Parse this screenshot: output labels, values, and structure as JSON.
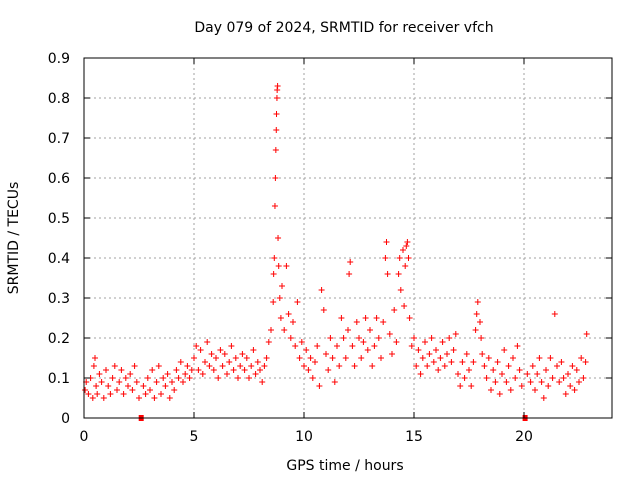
{
  "chart_data": {
    "type": "scatter",
    "title": "Day 079 of 2024, SRMTID for receiver vfch",
    "xlabel": "GPS time / hours",
    "ylabel": "SRMTID / TECUs",
    "xlim": [
      0,
      24
    ],
    "ylim": [
      0,
      0.9
    ],
    "x_ticks": [
      0,
      5,
      10,
      15,
      20
    ],
    "x_tick_labels": [
      "0",
      "5",
      "10",
      "15",
      "20"
    ],
    "y_ticks": [
      0,
      0.1,
      0.2,
      0.3,
      0.4,
      0.5,
      0.6,
      0.7,
      0.8,
      0.9
    ],
    "y_tick_labels": [
      "0",
      "0.1",
      "0.2",
      "0.3",
      "0.4",
      "0.5",
      "0.6",
      "0.7",
      "0.8",
      "0.9"
    ],
    "grid": true,
    "marker": "+",
    "marker_color": "#ff0000",
    "data_gaps_hours": [
      2.6,
      20.05
    ],
    "series": [
      {
        "name": "SRMTID",
        "points": [
          [
            0.05,
            0.07
          ],
          [
            0.1,
            0.09
          ],
          [
            0.2,
            0.06
          ],
          [
            0.3,
            0.1
          ],
          [
            0.4,
            0.05
          ],
          [
            0.45,
            0.13
          ],
          [
            0.5,
            0.15
          ],
          [
            0.55,
            0.08
          ],
          [
            0.6,
            0.06
          ],
          [
            0.7,
            0.11
          ],
          [
            0.8,
            0.09
          ],
          [
            0.9,
            0.05
          ],
          [
            1.0,
            0.12
          ],
          [
            1.1,
            0.08
          ],
          [
            1.2,
            0.06
          ],
          [
            1.3,
            0.1
          ],
          [
            1.4,
            0.13
          ],
          [
            1.5,
            0.07
          ],
          [
            1.6,
            0.09
          ],
          [
            1.7,
            0.12
          ],
          [
            1.8,
            0.06
          ],
          [
            1.9,
            0.1
          ],
          [
            2.0,
            0.08
          ],
          [
            2.1,
            0.11
          ],
          [
            2.2,
            0.07
          ],
          [
            2.3,
            0.13
          ],
          [
            2.4,
            0.09
          ],
          [
            2.5,
            0.05
          ],
          [
            2.7,
            0.08
          ],
          [
            2.8,
            0.06
          ],
          [
            2.9,
            0.1
          ],
          [
            3.0,
            0.07
          ],
          [
            3.1,
            0.12
          ],
          [
            3.2,
            0.05
          ],
          [
            3.3,
            0.09
          ],
          [
            3.4,
            0.13
          ],
          [
            3.5,
            0.06
          ],
          [
            3.6,
            0.1
          ],
          [
            3.7,
            0.08
          ],
          [
            3.8,
            0.11
          ],
          [
            3.9,
            0.05
          ],
          [
            4.0,
            0.09
          ],
          [
            4.1,
            0.07
          ],
          [
            4.2,
            0.12
          ],
          [
            4.3,
            0.1
          ],
          [
            4.4,
            0.14
          ],
          [
            4.5,
            0.09
          ],
          [
            4.6,
            0.11
          ],
          [
            4.7,
            0.13
          ],
          [
            4.8,
            0.1
          ],
          [
            4.9,
            0.12
          ],
          [
            5.0,
            0.15
          ],
          [
            5.1,
            0.18
          ],
          [
            5.2,
            0.12
          ],
          [
            5.3,
            0.17
          ],
          [
            5.4,
            0.11
          ],
          [
            5.5,
            0.14
          ],
          [
            5.6,
            0.19
          ],
          [
            5.7,
            0.13
          ],
          [
            5.8,
            0.16
          ],
          [
            5.9,
            0.12
          ],
          [
            6.0,
            0.15
          ],
          [
            6.1,
            0.1
          ],
          [
            6.2,
            0.17
          ],
          [
            6.3,
            0.13
          ],
          [
            6.4,
            0.16
          ],
          [
            6.5,
            0.11
          ],
          [
            6.6,
            0.14
          ],
          [
            6.7,
            0.18
          ],
          [
            6.8,
            0.12
          ],
          [
            6.9,
            0.15
          ],
          [
            7.0,
            0.1
          ],
          [
            7.1,
            0.13
          ],
          [
            7.2,
            0.16
          ],
          [
            7.3,
            0.12
          ],
          [
            7.4,
            0.15
          ],
          [
            7.5,
            0.1
          ],
          [
            7.6,
            0.13
          ],
          [
            7.7,
            0.17
          ],
          [
            7.8,
            0.11
          ],
          [
            7.9,
            0.14
          ],
          [
            8.0,
            0.12
          ],
          [
            8.1,
            0.09
          ],
          [
            8.2,
            0.13
          ],
          [
            8.3,
            0.15
          ],
          [
            8.4,
            0.19
          ],
          [
            8.5,
            0.22
          ],
          [
            8.6,
            0.29
          ],
          [
            8.62,
            0.36
          ],
          [
            8.65,
            0.4
          ],
          [
            8.68,
            0.53
          ],
          [
            8.7,
            0.6
          ],
          [
            8.72,
            0.67
          ],
          [
            8.74,
            0.72
          ],
          [
            8.75,
            0.76
          ],
          [
            8.77,
            0.8
          ],
          [
            8.78,
            0.82
          ],
          [
            8.8,
            0.83
          ],
          [
            8.82,
            0.45
          ],
          [
            8.85,
            0.38
          ],
          [
            8.9,
            0.3
          ],
          [
            8.95,
            0.25
          ],
          [
            9.0,
            0.33
          ],
          [
            9.1,
            0.22
          ],
          [
            9.2,
            0.38
          ],
          [
            9.3,
            0.26
          ],
          [
            9.4,
            0.2
          ],
          [
            9.5,
            0.24
          ],
          [
            9.6,
            0.18
          ],
          [
            9.7,
            0.29
          ],
          [
            9.8,
            0.15
          ],
          [
            9.9,
            0.19
          ],
          [
            10.0,
            0.13
          ],
          [
            10.1,
            0.17
          ],
          [
            10.2,
            0.12
          ],
          [
            10.3,
            0.15
          ],
          [
            10.4,
            0.1
          ],
          [
            10.5,
            0.14
          ],
          [
            10.6,
            0.18
          ],
          [
            10.7,
            0.08
          ],
          [
            10.8,
            0.32
          ],
          [
            10.9,
            0.27
          ],
          [
            11.0,
            0.16
          ],
          [
            11.1,
            0.12
          ],
          [
            11.2,
            0.2
          ],
          [
            11.3,
            0.15
          ],
          [
            11.4,
            0.09
          ],
          [
            11.5,
            0.18
          ],
          [
            11.6,
            0.13
          ],
          [
            11.7,
            0.25
          ],
          [
            11.8,
            0.2
          ],
          [
            11.9,
            0.15
          ],
          [
            12.0,
            0.22
          ],
          [
            12.05,
            0.36
          ],
          [
            12.1,
            0.39
          ],
          [
            12.2,
            0.18
          ],
          [
            12.3,
            0.13
          ],
          [
            12.4,
            0.24
          ],
          [
            12.5,
            0.2
          ],
          [
            12.6,
            0.15
          ],
          [
            12.7,
            0.19
          ],
          [
            12.8,
            0.25
          ],
          [
            12.9,
            0.17
          ],
          [
            13.0,
            0.22
          ],
          [
            13.1,
            0.13
          ],
          [
            13.2,
            0.18
          ],
          [
            13.3,
            0.25
          ],
          [
            13.4,
            0.2
          ],
          [
            13.5,
            0.15
          ],
          [
            13.6,
            0.24
          ],
          [
            13.7,
            0.4
          ],
          [
            13.75,
            0.44
          ],
          [
            13.8,
            0.36
          ],
          [
            13.9,
            0.21
          ],
          [
            14.0,
            0.16
          ],
          [
            14.1,
            0.27
          ],
          [
            14.2,
            0.19
          ],
          [
            14.3,
            0.36
          ],
          [
            14.35,
            0.4
          ],
          [
            14.4,
            0.32
          ],
          [
            14.5,
            0.42
          ],
          [
            14.55,
            0.28
          ],
          [
            14.6,
            0.38
          ],
          [
            14.65,
            0.43
          ],
          [
            14.7,
            0.44
          ],
          [
            14.75,
            0.4
          ],
          [
            14.8,
            0.25
          ],
          [
            14.9,
            0.18
          ],
          [
            15.0,
            0.2
          ],
          [
            15.1,
            0.13
          ],
          [
            15.2,
            0.17
          ],
          [
            15.3,
            0.11
          ],
          [
            15.4,
            0.15
          ],
          [
            15.5,
            0.19
          ],
          [
            15.6,
            0.13
          ],
          [
            15.7,
            0.16
          ],
          [
            15.8,
            0.2
          ],
          [
            15.9,
            0.14
          ],
          [
            16.0,
            0.17
          ],
          [
            16.1,
            0.12
          ],
          [
            16.2,
            0.15
          ],
          [
            16.3,
            0.19
          ],
          [
            16.4,
            0.13
          ],
          [
            16.5,
            0.16
          ],
          [
            16.6,
            0.2
          ],
          [
            16.7,
            0.14
          ],
          [
            16.8,
            0.17
          ],
          [
            16.9,
            0.21
          ],
          [
            17.0,
            0.11
          ],
          [
            17.1,
            0.08
          ],
          [
            17.2,
            0.14
          ],
          [
            17.3,
            0.1
          ],
          [
            17.4,
            0.16
          ],
          [
            17.5,
            0.12
          ],
          [
            17.6,
            0.08
          ],
          [
            17.7,
            0.14
          ],
          [
            17.8,
            0.22
          ],
          [
            17.85,
            0.26
          ],
          [
            17.9,
            0.29
          ],
          [
            18.0,
            0.24
          ],
          [
            18.05,
            0.2
          ],
          [
            18.1,
            0.16
          ],
          [
            18.2,
            0.13
          ],
          [
            18.3,
            0.1
          ],
          [
            18.4,
            0.15
          ],
          [
            18.5,
            0.07
          ],
          [
            18.6,
            0.12
          ],
          [
            18.7,
            0.09
          ],
          [
            18.8,
            0.14
          ],
          [
            18.9,
            0.06
          ],
          [
            19.0,
            0.11
          ],
          [
            19.1,
            0.17
          ],
          [
            19.2,
            0.09
          ],
          [
            19.3,
            0.13
          ],
          [
            19.4,
            0.07
          ],
          [
            19.5,
            0.15
          ],
          [
            19.6,
            0.1
          ],
          [
            19.7,
            0.18
          ],
          [
            19.8,
            0.12
          ],
          [
            19.9,
            0.08
          ],
          [
            20.15,
            0.11
          ],
          [
            20.3,
            0.09
          ],
          [
            20.4,
            0.13
          ],
          [
            20.5,
            0.07
          ],
          [
            20.6,
            0.11
          ],
          [
            20.7,
            0.15
          ],
          [
            20.8,
            0.09
          ],
          [
            20.9,
            0.05
          ],
          [
            21.0,
            0.12
          ],
          [
            21.1,
            0.08
          ],
          [
            21.2,
            0.15
          ],
          [
            21.3,
            0.1
          ],
          [
            21.4,
            0.26
          ],
          [
            21.5,
            0.13
          ],
          [
            21.6,
            0.09
          ],
          [
            21.7,
            0.14
          ],
          [
            21.8,
            0.1
          ],
          [
            21.9,
            0.06
          ],
          [
            22.0,
            0.11
          ],
          [
            22.1,
            0.08
          ],
          [
            22.2,
            0.13
          ],
          [
            22.3,
            0.07
          ],
          [
            22.4,
            0.12
          ],
          [
            22.5,
            0.09
          ],
          [
            22.6,
            0.15
          ],
          [
            22.7,
            0.1
          ],
          [
            22.8,
            0.14
          ],
          [
            22.85,
            0.21
          ]
        ]
      }
    ]
  }
}
